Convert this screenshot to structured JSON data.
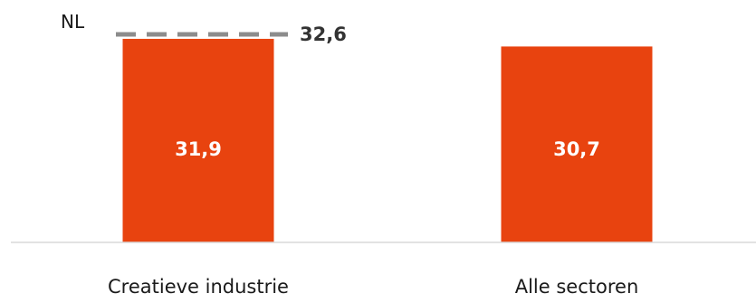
{
  "chart_data": {
    "type": "bar",
    "categories": [
      "Creatieve industrie",
      "Alle sectoren"
    ],
    "values": [
      31.9,
      30.7
    ],
    "value_labels": [
      "31,9",
      "30,7"
    ],
    "ylim": [
      0,
      32.6
    ],
    "grid": false,
    "bar_color": "#e8430f",
    "reference_line": {
      "name": "NL",
      "value": 32.6,
      "value_label": "32,6",
      "color": "#8c8c8c",
      "style": "dashed"
    }
  }
}
